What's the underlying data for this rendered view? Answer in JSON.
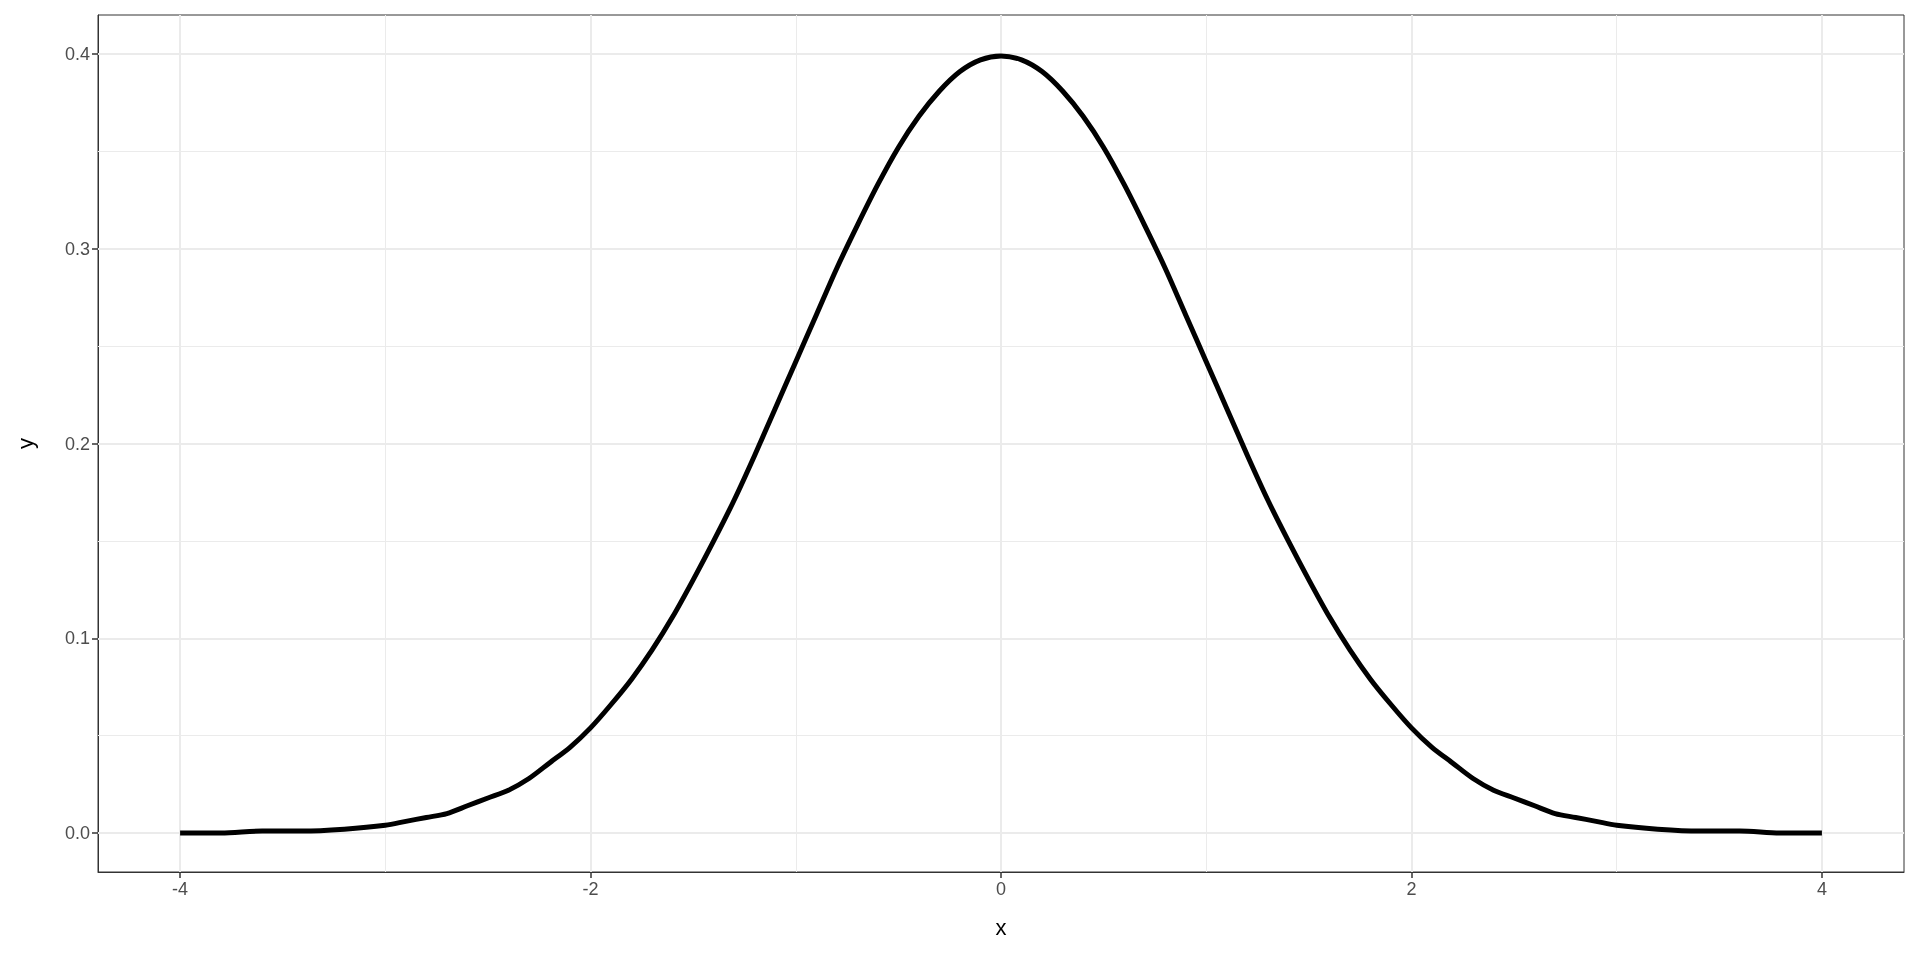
{
  "chart_data": {
    "type": "line",
    "xlabel": "x",
    "ylabel": "y",
    "x": [
      -4,
      -3.8,
      -3.6,
      -3.4,
      -3.2,
      -3,
      -2.9,
      -2.8,
      -2.7,
      -2.6,
      -2.5,
      -2.4,
      -2.3,
      -2.2,
      -2.1,
      -2,
      -1.9,
      -1.8,
      -1.7,
      -1.6,
      -1.5,
      -1.4,
      -1.3,
      -1.2,
      -1.1,
      -1,
      -0.9,
      -0.8,
      -0.7,
      -0.6,
      -0.5,
      -0.4,
      -0.3,
      -0.2,
      -0.1,
      0,
      0.1,
      0.2,
      0.3,
      0.4,
      0.5,
      0.6,
      0.7,
      0.8,
      0.9,
      1,
      1.1,
      1.2,
      1.3,
      1.4,
      1.5,
      1.6,
      1.7,
      1.8,
      1.9,
      2,
      2.1,
      2.2,
      2.3,
      2.4,
      2.5,
      2.6,
      2.7,
      2.8,
      2.9,
      3,
      3.2,
      3.4,
      3.6,
      3.8,
      4
    ],
    "series": [
      {
        "color": "#000000",
        "values": [
          0.0,
          0.0,
          0.001,
          0.001,
          0.002,
          0.004,
          0.006,
          0.008,
          0.01,
          0.014,
          0.018,
          0.022,
          0.028,
          0.036,
          0.044,
          0.054,
          0.066,
          0.079,
          0.094,
          0.111,
          0.13,
          0.15,
          0.171,
          0.194,
          0.218,
          0.242,
          0.266,
          0.29,
          0.312,
          0.333,
          0.352,
          0.368,
          0.381,
          0.391,
          0.397,
          0.399,
          0.397,
          0.391,
          0.381,
          0.368,
          0.352,
          0.333,
          0.312,
          0.29,
          0.266,
          0.242,
          0.218,
          0.194,
          0.171,
          0.15,
          0.13,
          0.111,
          0.094,
          0.079,
          0.066,
          0.054,
          0.044,
          0.036,
          0.028,
          0.022,
          0.018,
          0.014,
          0.01,
          0.008,
          0.006,
          0.004,
          0.002,
          0.001,
          0.001,
          0.0,
          0.0
        ]
      }
    ],
    "xlim": [
      -4.4,
      4.4
    ],
    "xticks": [
      -4,
      -2,
      0,
      2,
      4
    ],
    "ylim": [
      -0.02,
      0.42
    ],
    "yticks": [
      {
        "value": 0,
        "label": "0.0"
      },
      0.1,
      0.2,
      0.3,
      0.4
    ],
    "grid": true,
    "line_style": "solid"
  }
}
